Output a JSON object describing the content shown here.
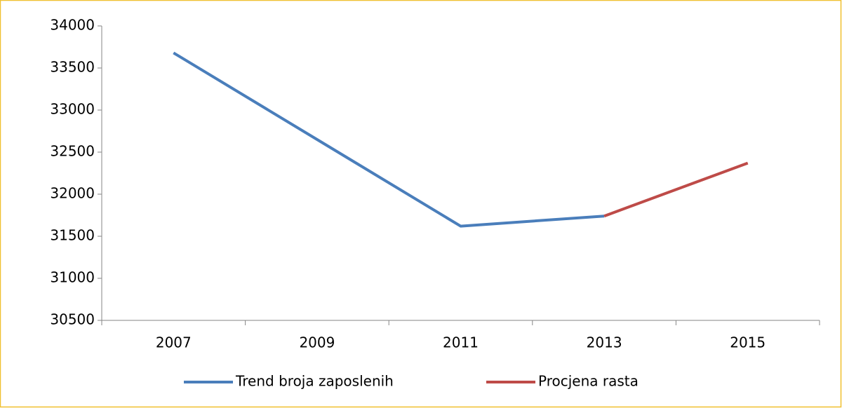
{
  "chart_data": {
    "type": "line",
    "categories": [
      "2007",
      "2009",
      "2011",
      "2013",
      "2015"
    ],
    "series": [
      {
        "name": "Trend broja zaposlenih",
        "color": "#4a7ebb",
        "values": [
          33680,
          32650,
          31620,
          31740,
          null
        ]
      },
      {
        "name": "Procjena rasta",
        "color": "#be4b48",
        "values": [
          null,
          null,
          null,
          31740,
          32370
        ]
      }
    ],
    "ylim": [
      30500,
      34000
    ],
    "yticks": [
      30500,
      31000,
      31500,
      32000,
      32500,
      33000,
      33500,
      34000
    ],
    "grid": false,
    "legend": "bottom"
  }
}
